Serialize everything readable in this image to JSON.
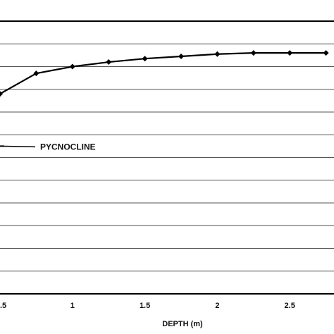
{
  "chart_data": {
    "type": "line",
    "title": "",
    "xlabel": "DEPTH (m)",
    "ylabel": "",
    "xlim": [
      0.5,
      3.0
    ],
    "ylim": [
      0,
      1.2
    ],
    "grid": true,
    "x_ticks": [
      0.5,
      1,
      1.5,
      2,
      2.5
    ],
    "x_tick_labels": [
      ".5",
      "1",
      "1.5",
      "2",
      "2.5"
    ],
    "series": [
      {
        "x": [
          0.5,
          0.75,
          1.0,
          1.25,
          1.5,
          1.75,
          2.0,
          2.25,
          2.5,
          2.75
        ],
        "values": [
          0.88,
          0.97,
          1.0,
          1.02,
          1.035,
          1.045,
          1.055,
          1.06,
          1.06,
          1.06
        ]
      }
    ],
    "annotations": [
      {
        "text": "PYCNOCLINE",
        "x": 0.5,
        "y": 0.65
      }
    ]
  },
  "colors": {
    "line": "#000000",
    "grid": "#555555",
    "background": "#ffffff"
  }
}
